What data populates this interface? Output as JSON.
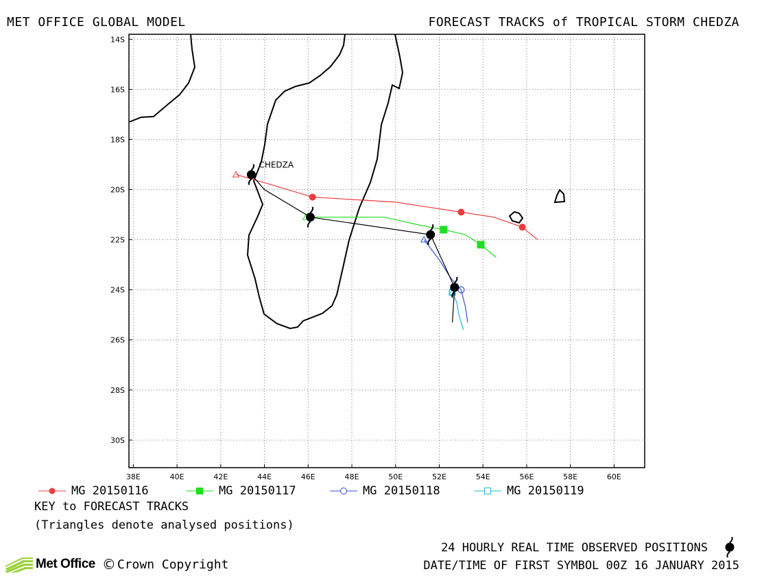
{
  "header": {
    "left": "MET OFFICE GLOBAL MODEL",
    "right": "FORECAST TRACKS of TROPICAL STORM CHEDZA"
  },
  "chart_data": {
    "type": "map-track",
    "xlim": [
      37.8,
      61.4
    ],
    "ylim": [
      -31.1,
      -13.8
    ],
    "x_ticks": [
      {
        "value": 38,
        "label": "38E"
      },
      {
        "value": 40,
        "label": "40E"
      },
      {
        "value": 42,
        "label": "42E"
      },
      {
        "value": 44,
        "label": "44E"
      },
      {
        "value": 46,
        "label": "46E"
      },
      {
        "value": 48,
        "label": "48E"
      },
      {
        "value": 50,
        "label": "50E"
      },
      {
        "value": 52,
        "label": "52E"
      },
      {
        "value": 54,
        "label": "54E"
      },
      {
        "value": 56,
        "label": "56E"
      },
      {
        "value": 58,
        "label": "58E"
      },
      {
        "value": 60,
        "label": "60E"
      }
    ],
    "y_ticks": [
      {
        "value": -14,
        "label": "14S"
      },
      {
        "value": -16,
        "label": "16S"
      },
      {
        "value": -18,
        "label": "18S"
      },
      {
        "value": -20,
        "label": "20S"
      },
      {
        "value": -22,
        "label": "22S"
      },
      {
        "value": -24,
        "label": "24S"
      },
      {
        "value": -26,
        "label": "26S"
      },
      {
        "value": -28,
        "label": "28S"
      },
      {
        "value": -30,
        "label": "30S"
      }
    ],
    "grid": true,
    "storm_label": "CHEDZA",
    "observed_track": {
      "color": "#000000",
      "points": [
        [
          43.4,
          -19.4
        ],
        [
          44.0,
          -20.0
        ],
        [
          46.1,
          -21.1
        ],
        [
          51.6,
          -21.8
        ],
        [
          52.7,
          -23.9
        ],
        [
          52.6,
          -25.3
        ]
      ],
      "symbols": [
        [
          43.4,
          -19.4
        ],
        [
          46.1,
          -21.1
        ],
        [
          51.6,
          -21.8
        ],
        [
          52.7,
          -23.9
        ]
      ]
    },
    "series": [
      {
        "name": "MG 20150116",
        "color": "#ee3b3b",
        "marker": "filled-circle",
        "analysed": [
          42.7,
          -19.4
        ],
        "points": [
          [
            42.7,
            -19.4
          ],
          [
            44.3,
            -19.8
          ],
          [
            46.2,
            -20.3
          ],
          [
            50.0,
            -20.5
          ],
          [
            53.0,
            -20.9
          ],
          [
            54.5,
            -21.1
          ],
          [
            55.8,
            -21.5
          ],
          [
            56.5,
            -22.0
          ]
        ],
        "markers": [
          [
            46.2,
            -20.3
          ],
          [
            53.0,
            -20.9
          ],
          [
            55.8,
            -21.5
          ]
        ]
      },
      {
        "name": "MG 20150117",
        "color": "#22dd22",
        "marker": "filled-square",
        "analysed": [
          45.9,
          -21.1
        ],
        "points": [
          [
            45.9,
            -21.1
          ],
          [
            47.5,
            -21.1
          ],
          [
            49.5,
            -21.1
          ],
          [
            51.0,
            -21.4
          ],
          [
            52.2,
            -21.6
          ],
          [
            53.2,
            -21.8
          ],
          [
            53.9,
            -22.2
          ],
          [
            54.6,
            -22.7
          ]
        ],
        "markers": [
          [
            52.2,
            -21.6
          ],
          [
            53.9,
            -22.2
          ]
        ]
      },
      {
        "name": "MG 20150118",
        "color": "#3050d0",
        "marker": "open-circle",
        "analysed": [
          51.3,
          -22.0
        ],
        "points": [
          [
            51.3,
            -22.0
          ],
          [
            52.0,
            -22.8
          ],
          [
            52.5,
            -23.5
          ],
          [
            53.0,
            -24.0
          ],
          [
            53.2,
            -24.7
          ],
          [
            53.3,
            -25.3
          ]
        ],
        "markers": [
          [
            53.0,
            -24.0
          ]
        ]
      },
      {
        "name": "MG 20150119",
        "color": "#22b8d8",
        "marker": "open-square",
        "analysed": [
          52.6,
          -24.1
        ],
        "points": [
          [
            52.6,
            -24.1
          ],
          [
            52.8,
            -24.5
          ],
          [
            52.9,
            -25.0
          ],
          [
            53.1,
            -25.6
          ]
        ],
        "markers": [
          [
            52.6,
            -24.1
          ]
        ]
      }
    ]
  },
  "legend": {
    "items": [
      "MG 20150116",
      "MG 20150117",
      "MG 20150118",
      "MG 20150119"
    ]
  },
  "key": {
    "title": "KEY to FORECAST TRACKS",
    "note": "(Triangles denote analysed positions)"
  },
  "footer": {
    "observed": "24 HOURLY REAL TIME OBSERVED POSITIONS",
    "datetime": "DATE/TIME OF FIRST SYMBOL 00Z 16 JANUARY 2015",
    "logo_text": "Met Office",
    "copyright_symbol": "©",
    "copyright": "Crown Copyright"
  }
}
